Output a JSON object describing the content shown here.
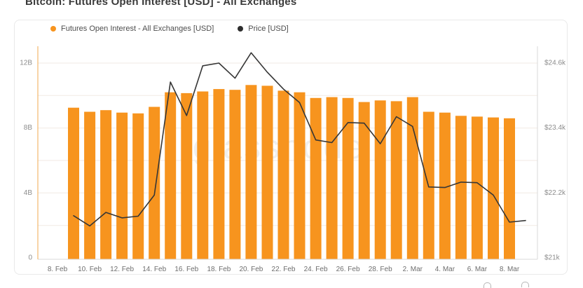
{
  "page": {
    "title": "Bitcoin: Futures Open Interest [USD] - All Exchanges"
  },
  "legend": [
    {
      "label": "Futures Open Interest - All Exchanges [USD]",
      "color": "#F7941E"
    },
    {
      "label": "Price [USD]",
      "color": "#2E2E2E"
    }
  ],
  "watermark": "glassnode",
  "chart_data": {
    "type": "bar",
    "title": "Bitcoin: Futures Open Interest [USD] - All Exchanges",
    "legend_position": "top-left",
    "grid": true,
    "x_ticks": [
      "8. Feb",
      "10. Feb",
      "12. Feb",
      "14. Feb",
      "16. Feb",
      "18. Feb",
      "20. Feb",
      "22. Feb",
      "24. Feb",
      "26. Feb",
      "28. Feb",
      "2. Mar",
      "4. Mar",
      "6. Mar",
      "8. Mar"
    ],
    "left_axis": {
      "ticks": [
        "0",
        "4B",
        "8B",
        "12B"
      ],
      "tick_values_billions": [
        0,
        4,
        8,
        12
      ],
      "range_billions": [
        0,
        13.0
      ],
      "grid_step_billions": 2
    },
    "right_axis": {
      "ticks": [
        "$21k",
        "$22.2k",
        "$23.4k",
        "$24.6k"
      ],
      "tick_values_thousands": [
        21,
        22.2,
        23.4,
        24.6
      ],
      "range_thousands": [
        21,
        24.9
      ]
    },
    "series": [
      {
        "name": "Futures Open Interest - All Exchanges [USD]",
        "type": "bar",
        "axis": "left",
        "unit": "billion USD",
        "color": "#F7941E",
        "dates": [
          "9. Feb",
          "10. Feb",
          "11. Feb",
          "12. Feb",
          "13. Feb",
          "14. Feb",
          "15. Feb",
          "16. Feb",
          "17. Feb",
          "18. Feb",
          "19. Feb",
          "20. Feb",
          "21. Feb",
          "22. Feb",
          "23. Feb",
          "24. Feb",
          "25. Feb",
          "26. Feb",
          "27. Feb",
          "28. Feb",
          "1. Mar",
          "2. Mar",
          "3. Mar",
          "4. Mar",
          "5. Mar",
          "6. Mar",
          "7. Mar",
          "8. Mar"
        ],
        "values": [
          9.25,
          9.0,
          9.1,
          8.95,
          8.9,
          9.3,
          10.2,
          10.15,
          10.25,
          10.4,
          10.35,
          10.65,
          10.6,
          10.3,
          10.2,
          9.85,
          9.9,
          9.85,
          9.6,
          9.7,
          9.65,
          9.9,
          9.0,
          8.95,
          8.75,
          8.7,
          8.65,
          8.6
        ]
      },
      {
        "name": "Price [USD]",
        "type": "line",
        "axis": "right",
        "unit": "thousand USD",
        "color": "#363636",
        "dates": [
          "9. Feb",
          "10. Feb",
          "11. Feb",
          "12. Feb",
          "13. Feb",
          "14. Feb",
          "15. Feb",
          "16. Feb",
          "17. Feb",
          "18. Feb",
          "19. Feb",
          "20. Feb",
          "21. Feb",
          "22. Feb",
          "23. Feb",
          "24. Feb",
          "25. Feb",
          "26. Feb",
          "27. Feb",
          "28. Feb",
          "1. Mar",
          "2. Mar",
          "3. Mar",
          "4. Mar",
          "5. Mar",
          "6. Mar",
          "7. Mar",
          "8. Mar",
          "9. Mar"
        ],
        "values": [
          21.78,
          21.59,
          21.84,
          21.74,
          21.77,
          22.16,
          24.25,
          23.63,
          24.55,
          24.6,
          24.32,
          24.79,
          24.43,
          24.12,
          23.87,
          23.18,
          23.13,
          23.5,
          23.49,
          23.11,
          23.61,
          23.43,
          22.31,
          22.3,
          22.4,
          22.39,
          22.16,
          21.66,
          21.69
        ]
      }
    ]
  }
}
